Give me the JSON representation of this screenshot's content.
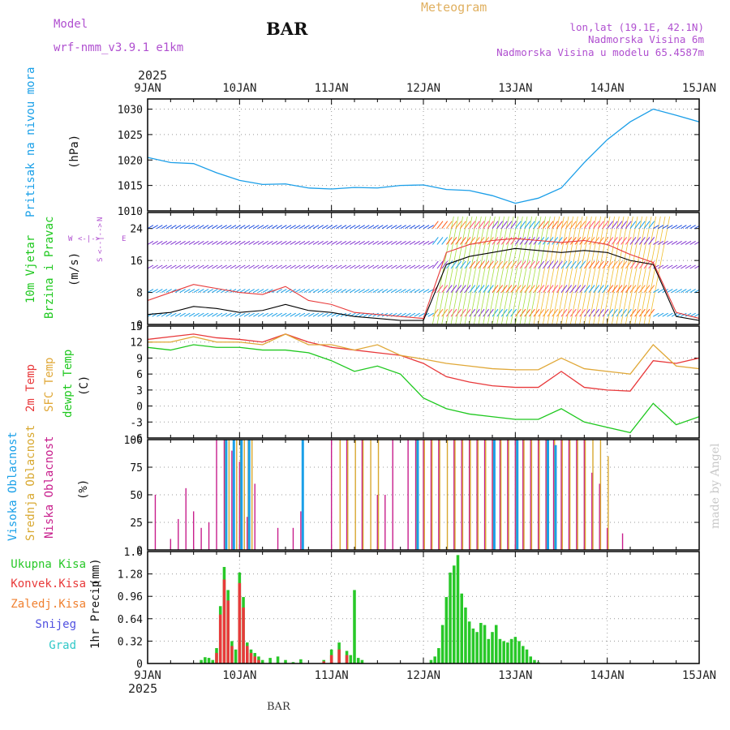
{
  "header": {
    "model_label": "Model",
    "model_name": "wrf-nmm_v3.9.1 e1km",
    "station": "BAR",
    "app_title": "Meteogram",
    "coords": "lon,lat (19.1E, 42.1N)",
    "altitude": "Nadmorska Visina 6m",
    "model_altitude": "Nadmorska Visina u modelu 65.4587m",
    "year": "2025",
    "credit": "made by Angel",
    "footer_station": "BAR"
  },
  "colors": {
    "pressure": "#1a9ee8",
    "temp2m": "#e8383a",
    "sfc": "#e0a838",
    "dewpt": "#1ec81e",
    "high_cloud": "#1aa0e8",
    "mid_cloud": "#d8a830",
    "low_cloud": "#c81e8c",
    "total_precip": "#28c828",
    "conv_precip": "#e83a3a",
    "frz_precip": "#f08030",
    "snow": "#5050e0",
    "hail": "#30c8c8",
    "model": "#b050d0",
    "coords": "#b050d0",
    "wind_speed": "#000000",
    "wind_gust": "#e83a3a"
  },
  "chart_data": {
    "type": "line",
    "x_start": "2025-01-09T00",
    "x_end": "2025-01-15T00",
    "date_ticks": [
      "9JAN",
      "10JAN",
      "11JAN",
      "12JAN",
      "13JAN",
      "14JAN",
      "15JAN"
    ],
    "panels": [
      {
        "id": "pressure",
        "ylabel": [
          "Pritisak na nivou mora",
          "(hPa)"
        ],
        "ylim": [
          1010,
          1032
        ],
        "yticks": [
          1010,
          1015,
          1020,
          1025,
          1030
        ],
        "series": [
          {
            "x": [
              0,
              6,
              12,
              18,
              24,
              30,
              36,
              42,
              48,
              54,
              60,
              66,
              72,
              78,
              84,
              90,
              96,
              102,
              108,
              114,
              120,
              126,
              132,
              138,
              144
            ],
            "y": [
              1020.5,
              1019.5,
              1019.3,
              1017.5,
              1016.0,
              1015.2,
              1015.3,
              1014.5,
              1014.3,
              1014.6,
              1014.5,
              1015.0,
              1015.1,
              1014.2,
              1014.0,
              1013.0,
              1011.5,
              1012.5,
              1014.5,
              1019.5,
              1024.0,
              1027.5,
              1030.0,
              1028.8,
              1027.5
            ]
          }
        ]
      },
      {
        "id": "wind",
        "ylabel": [
          "10m Vjetar",
          "Brzina i Pravac",
          "(m/s)"
        ],
        "compass": [
          "N",
          "E",
          "S",
          "W"
        ],
        "ylim": [
          0,
          28
        ],
        "yticks": [
          0,
          8,
          16,
          24
        ],
        "series": [
          {
            "name": "speed",
            "x": [
              0,
              6,
              12,
              18,
              24,
              30,
              36,
              42,
              48,
              54,
              60,
              66,
              72,
              78,
              84,
              90,
              96,
              102,
              108,
              114,
              120,
              126,
              132,
              138,
              144
            ],
            "y": [
              2.5,
              3.0,
              4.5,
              4.0,
              3.0,
              3.5,
              5.0,
              3.5,
              3.0,
              2.0,
              1.5,
              1.0,
              1.0,
              15.0,
              17.0,
              18.0,
              19.0,
              18.5,
              18.0,
              18.5,
              18.0,
              16.0,
              15.0,
              2.0,
              1.0
            ]
          },
          {
            "name": "gust",
            "x": [
              0,
              6,
              12,
              18,
              24,
              30,
              36,
              42,
              48,
              54,
              60,
              66,
              72,
              78,
              84,
              90,
              96,
              102,
              108,
              114,
              120,
              126,
              132,
              138,
              144
            ],
            "y": [
              6.0,
              8.0,
              10.0,
              9.0,
              8.0,
              7.5,
              9.5,
              6.0,
              5.0,
              3.0,
              2.5,
              2.0,
              1.5,
              18.0,
              20.0,
              21.0,
              21.5,
              21.0,
              20.5,
              21.0,
              20.0,
              17.5,
              15.5,
              3.0,
              1.5
            ]
          }
        ]
      },
      {
        "id": "temperature",
        "ylabel": [
          "2m Temp",
          "SFC Temp",
          "dewpt Temp",
          "(C)"
        ],
        "ylim": [
          -6,
          15
        ],
        "yticks": [
          -6,
          -3,
          0,
          3,
          6,
          9,
          12,
          15
        ],
        "series": [
          {
            "name": "2m Temp",
            "x": [
              0,
              6,
              12,
              18,
              24,
              30,
              36,
              42,
              48,
              54,
              60,
              66,
              72,
              78,
              84,
              90,
              96,
              102,
              108,
              114,
              120,
              126,
              132,
              138,
              144
            ],
            "y": [
              12.5,
              13.0,
              13.5,
              12.8,
              12.5,
              12.0,
              13.5,
              12.0,
              11.0,
              10.5,
              10.0,
              9.5,
              8.0,
              5.5,
              4.5,
              3.8,
              3.5,
              3.5,
              6.5,
              3.5,
              3.0,
              2.8,
              8.5,
              8.0,
              9.0
            ]
          },
          {
            "name": "SFC Temp",
            "x": [
              0,
              6,
              12,
              18,
              24,
              30,
              36,
              42,
              48,
              54,
              60,
              66,
              72,
              78,
              84,
              90,
              96,
              102,
              108,
              114,
              120,
              126,
              132,
              138,
              144
            ],
            "y": [
              12.0,
              12.0,
              13.0,
              12.0,
              12.0,
              11.5,
              13.5,
              11.5,
              11.5,
              10.5,
              11.5,
              9.5,
              8.8,
              8.0,
              7.5,
              7.0,
              6.8,
              6.8,
              9.0,
              7.0,
              6.5,
              6.0,
              11.5,
              7.5,
              7.0
            ]
          },
          {
            "name": "dewpt Temp",
            "x": [
              0,
              6,
              12,
              18,
              24,
              30,
              36,
              42,
              48,
              54,
              60,
              66,
              72,
              78,
              84,
              90,
              96,
              102,
              108,
              114,
              120,
              126,
              132,
              138,
              144
            ],
            "y": [
              11.0,
              10.5,
              11.5,
              11.0,
              11.0,
              10.5,
              10.5,
              10.0,
              8.5,
              6.5,
              7.5,
              6.0,
              1.5,
              -0.5,
              -1.5,
              -2.0,
              -2.5,
              -2.5,
              -0.5,
              -3.0,
              -4.0,
              -5.0,
              0.5,
              -3.5,
              -2.0
            ]
          }
        ]
      },
      {
        "id": "clouds",
        "ylabel": [
          "Visoka Oblacnost",
          "Srednja Oblacnost",
          "Niska Oblacnost",
          "(%)"
        ],
        "ylim": [
          0,
          100
        ],
        "yticks": [
          0,
          25,
          50,
          75,
          100
        ],
        "series": [
          {
            "name": "Niska Oblacnost",
            "x": [
              2,
              6,
              8,
              10,
              12,
              14,
              16,
              18,
              20,
              22,
              24,
              26,
              28,
              34,
              38,
              40,
              48,
              52,
              56,
              60,
              62,
              64,
              68,
              70,
              72,
              74,
              76,
              80,
              82,
              84,
              86,
              88,
              90,
              92,
              94,
              96,
              98,
              100,
              102,
              104,
              106,
              108,
              110,
              112,
              114,
              116,
              118,
              120,
              124
            ],
            "y": [
              50,
              10,
              28,
              56,
              35,
              20,
              25,
              100,
              100,
              90,
              80,
              30,
              60,
              20,
              20,
              35,
              100,
              100,
              100,
              50,
              50,
              100,
              100,
              100,
              100,
              100,
              100,
              100,
              100,
              100,
              100,
              100,
              100,
              100,
              100,
              100,
              100,
              100,
              100,
              100,
              100,
              100,
              100,
              100,
              100,
              70,
              60,
              20,
              15
            ]
          },
          {
            "name": "Srednja Oblacnost",
            "x": [
              20,
              21,
              23,
              24,
              25,
              26,
              27,
              50,
              52,
              54,
              56,
              58,
              60,
              70,
              72,
              74,
              76,
              78,
              80,
              82,
              84,
              86,
              88,
              90,
              92,
              94,
              96,
              98,
              100,
              102,
              104,
              106,
              108,
              110,
              112,
              114,
              116,
              118,
              120
            ],
            "y": [
              100,
              100,
              100,
              100,
              100,
              100,
              100,
              100,
              100,
              100,
              100,
              100,
              100,
              100,
              100,
              100,
              100,
              100,
              100,
              100,
              100,
              100,
              100,
              100,
              100,
              100,
              100,
              100,
              100,
              100,
              100,
              100,
              100,
              100,
              100,
              100,
              100,
              100,
              85
            ]
          },
          {
            "name": "Visoka Oblacnost",
            "x": [
              20,
              22,
              24,
              26,
              40,
              70,
              90,
              96,
              104,
              106
            ],
            "y": [
              100,
              100,
              100,
              100,
              100,
              100,
              100,
              100,
              100,
              95
            ]
          }
        ]
      },
      {
        "id": "precip",
        "ylabel": [
          "1hr Precip",
          "(mm)"
        ],
        "legend": [
          "Ukupna Kisa",
          "Konvek.Kisa",
          "Zaledj.Kisa",
          "Snijeg",
          "Grad"
        ],
        "ylim": [
          0,
          1.6
        ],
        "yticks": [
          0,
          0.32,
          0.64,
          0.96,
          1.28,
          1.6
        ],
        "series": [
          {
            "name": "Ukupna Kisa",
            "x": [
              14,
              15,
              16,
              17,
              18,
              19,
              20,
              21,
              22,
              23,
              24,
              25,
              26,
              27,
              28,
              29,
              30,
              32,
              34,
              36,
              38,
              40,
              46,
              48,
              50,
              52,
              53,
              54,
              55,
              56,
              74,
              75,
              76,
              77,
              78,
              79,
              80,
              81,
              82,
              83,
              84,
              85,
              86,
              87,
              88,
              89,
              90,
              91,
              92,
              93,
              94,
              95,
              96,
              97,
              98,
              99,
              100,
              101,
              102
            ],
            "y": [
              0.05,
              0.09,
              0.08,
              0.05,
              0.22,
              0.82,
              1.38,
              1.05,
              0.32,
              0.2,
              1.3,
              0.95,
              0.3,
              0.2,
              0.15,
              0.1,
              0.05,
              0.08,
              0.1,
              0.05,
              0.02,
              0.06,
              0.05,
              0.2,
              0.3,
              0.18,
              0.12,
              1.05,
              0.08,
              0.05,
              0.05,
              0.1,
              0.22,
              0.55,
              0.95,
              1.3,
              1.4,
              1.55,
              1.0,
              0.8,
              0.6,
              0.5,
              0.45,
              0.58,
              0.55,
              0.35,
              0.45,
              0.55,
              0.35,
              0.32,
              0.3,
              0.35,
              0.38,
              0.32,
              0.25,
              0.2,
              0.1,
              0.05,
              0.02
            ]
          },
          {
            "name": "Konvek.Kisa",
            "x": [
              18,
              19,
              20,
              21,
              22,
              24,
              25,
              26,
              27,
              28,
              29,
              46,
              48,
              50,
              52
            ],
            "y": [
              0.15,
              0.7,
              1.2,
              0.9,
              0.25,
              1.15,
              0.8,
              0.25,
              0.15,
              0.1,
              0.05,
              0.03,
              0.12,
              0.2,
              0.12
            ]
          }
        ]
      }
    ]
  }
}
